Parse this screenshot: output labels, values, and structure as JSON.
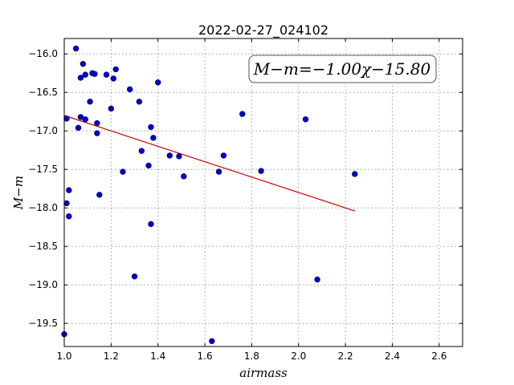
{
  "chart_data": {
    "type": "scatter",
    "title": "2022-02-27_024102",
    "xlabel": "airmass",
    "ylabel": "M−m",
    "xlim": [
      1.0,
      2.7
    ],
    "ylim": [
      -19.8,
      -15.8
    ],
    "ylim_note": "inverted",
    "xticks": [
      "1.0",
      "1.2",
      "1.4",
      "1.6",
      "1.8",
      "2.0",
      "2.2",
      "2.4",
      "2.6"
    ],
    "yticks": [
      "−16.0",
      "−16.5",
      "−17.0",
      "−17.5",
      "−18.0",
      "−18.5",
      "−19.0",
      "−19.5"
    ],
    "grid": true,
    "annotation": "M−m=−1.00χ−15.80",
    "points_color": "#0000cc",
    "fit_color": "#cc0000",
    "fit": {
      "slope": -1.0,
      "intercept": -15.8,
      "x_range": [
        1.0,
        2.24
      ]
    },
    "points": [
      [
        1.0,
        -19.64
      ],
      [
        1.01,
        -16.84
      ],
      [
        1.01,
        -17.94
      ],
      [
        1.02,
        -17.77
      ],
      [
        1.02,
        -18.11
      ],
      [
        1.05,
        -15.93
      ],
      [
        1.06,
        -16.96
      ],
      [
        1.07,
        -16.31
      ],
      [
        1.07,
        -16.82
      ],
      [
        1.08,
        -16.13
      ],
      [
        1.09,
        -16.27
      ],
      [
        1.09,
        -16.85
      ],
      [
        1.11,
        -16.62
      ],
      [
        1.12,
        -16.25
      ],
      [
        1.13,
        -16.26
      ],
      [
        1.14,
        -17.03
      ],
      [
        1.14,
        -16.9
      ],
      [
        1.15,
        -17.83
      ],
      [
        1.18,
        -16.27
      ],
      [
        1.2,
        -16.71
      ],
      [
        1.21,
        -16.32
      ],
      [
        1.22,
        -16.2
      ],
      [
        1.25,
        -17.53
      ],
      [
        1.28,
        -16.46
      ],
      [
        1.3,
        -18.89
      ],
      [
        1.32,
        -16.62
      ],
      [
        1.33,
        -17.26
      ],
      [
        1.36,
        -17.45
      ],
      [
        1.37,
        -18.21
      ],
      [
        1.37,
        -16.95
      ],
      [
        1.38,
        -17.09
      ],
      [
        1.4,
        -16.37
      ],
      [
        1.45,
        -17.32
      ],
      [
        1.49,
        -17.33
      ],
      [
        1.51,
        -17.59
      ],
      [
        1.63,
        -19.73
      ],
      [
        1.66,
        -17.53
      ],
      [
        1.68,
        -17.32
      ],
      [
        1.76,
        -16.78
      ],
      [
        1.84,
        -17.52
      ],
      [
        2.03,
        -16.85
      ],
      [
        2.08,
        -18.93
      ],
      [
        2.24,
        -17.56
      ]
    ]
  }
}
